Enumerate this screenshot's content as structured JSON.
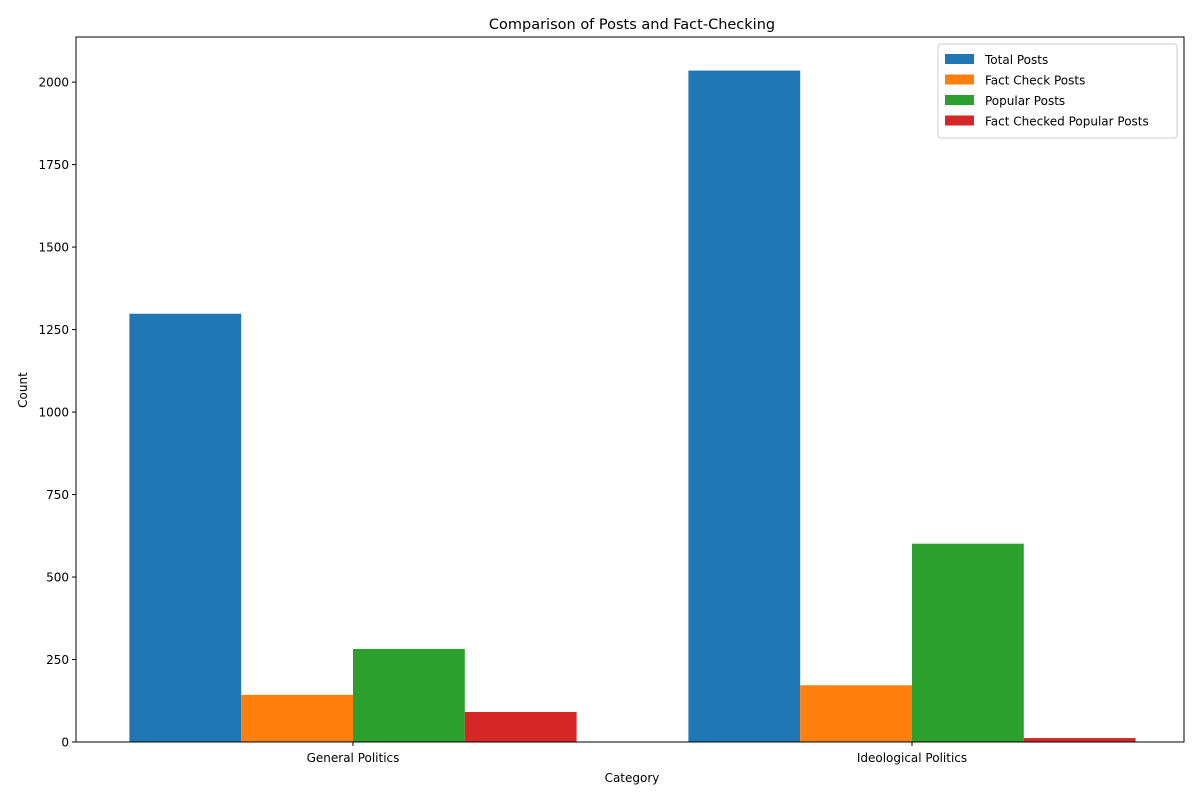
{
  "chart_data": {
    "type": "bar",
    "title": "Comparison of Posts and Fact-Checking",
    "xlabel": "Category",
    "ylabel": "Count",
    "categories": [
      "General Politics",
      "Ideological Politics"
    ],
    "series": [
      {
        "name": "Total Posts",
        "values": [
          1298,
          2035
        ],
        "color": "#1f77b4"
      },
      {
        "name": "Fact Check Posts",
        "values": [
          143,
          172
        ],
        "color": "#ff7f0e"
      },
      {
        "name": "Popular Posts",
        "values": [
          282,
          601
        ],
        "color": "#2ca02c"
      },
      {
        "name": "Fact Checked Popular Posts",
        "values": [
          91,
          12
        ],
        "color": "#d62728"
      }
    ],
    "ylim": [
      0,
      2136.75
    ],
    "yticks": [
      0,
      250,
      500,
      750,
      1000,
      1250,
      1500,
      1750,
      2000
    ],
    "grid": false,
    "legend_position": "top-right"
  }
}
